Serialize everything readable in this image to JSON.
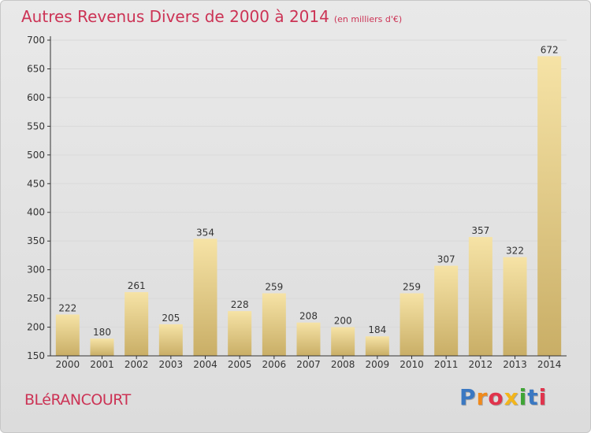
{
  "title": "Autres Revenus Divers de 2000 à 2014",
  "unit": "(en milliers d'€)",
  "city": "BLéRANCOURT",
  "logo": {
    "text": "Proxiti",
    "colors": [
      "#3a78c2",
      "#f08a1c",
      "#e0344c",
      "#f3b51b",
      "#3fa535",
      "#3a78c2",
      "#e0344c"
    ]
  },
  "colors": {
    "title": "#cc3355",
    "bar_light": "#f6e3a6",
    "bar_dark": "#c9ae66",
    "axis": "#333333",
    "grid": "#d9d9d9"
  },
  "chart_data": {
    "type": "bar",
    "categories": [
      "2000",
      "2001",
      "2002",
      "2003",
      "2004",
      "2005",
      "2006",
      "2007",
      "2008",
      "2009",
      "2010",
      "2011",
      "2012",
      "2013",
      "2014"
    ],
    "values": [
      222,
      180,
      261,
      205,
      354,
      228,
      259,
      208,
      200,
      184,
      259,
      307,
      357,
      322,
      672
    ],
    "ylim": [
      150,
      700
    ],
    "yticks": [
      150,
      200,
      250,
      300,
      350,
      400,
      450,
      500,
      550,
      600,
      650,
      700
    ],
    "grid": true,
    "xlabel": "",
    "ylabel": ""
  }
}
